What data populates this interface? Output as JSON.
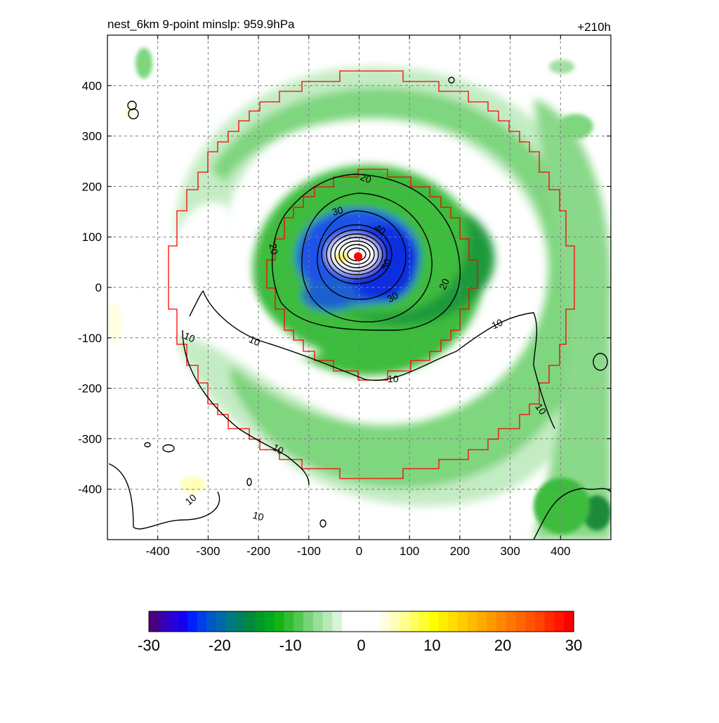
{
  "header": {
    "title": "nest_6km  9-point minslp: 959.9hPa",
    "forecast_hour": "+210h"
  },
  "axes": {
    "x_ticks": [
      "-400",
      "-300",
      "-200",
      "-100",
      "0",
      "100",
      "200",
      "300",
      "400"
    ],
    "y_ticks": [
      "400",
      "300",
      "200",
      "100",
      "0",
      "-100",
      "-200",
      "-300",
      "-400"
    ],
    "x_range": [
      -500,
      500
    ],
    "y_range": [
      -500,
      500
    ]
  },
  "contour_labels": [
    "20",
    "30",
    "40",
    "50",
    "30",
    "20",
    "20",
    "10",
    "10",
    "10",
    "10",
    "10",
    "10",
    "10",
    "10"
  ],
  "colorbar": {
    "tick_labels": [
      "-30",
      "-20",
      "-10",
      "0",
      "10",
      "20",
      "30"
    ],
    "range": [
      -30,
      30
    ],
    "colors": [
      "#4b0082",
      "#3a00b0",
      "#2a00d8",
      "#1500f0",
      "#0020ff",
      "#0040e8",
      "#0058c8",
      "#006aa8",
      "#007888",
      "#008060",
      "#008a3c",
      "#009a28",
      "#00aa20",
      "#14b414",
      "#30be30",
      "#52c852",
      "#76d476",
      "#98df98",
      "#b8eab8",
      "#d6f4d6",
      "#ffffff",
      "#ffffff",
      "#ffffff",
      "#ffffff",
      "#ffffe0",
      "#ffffb8",
      "#ffff90",
      "#ffff60",
      "#ffff30",
      "#ffff00",
      "#ffee00",
      "#ffdd00",
      "#ffcc00",
      "#ffbb00",
      "#ffaa00",
      "#ff9900",
      "#ff8800",
      "#ff7700",
      "#ff6600",
      "#ff5500",
      "#ff4400",
      "#ff2a00",
      "#ff1500",
      "#ff0000"
    ]
  },
  "storm_center_color": "#ff0000",
  "nest_boundary_color": "#ff0000"
}
